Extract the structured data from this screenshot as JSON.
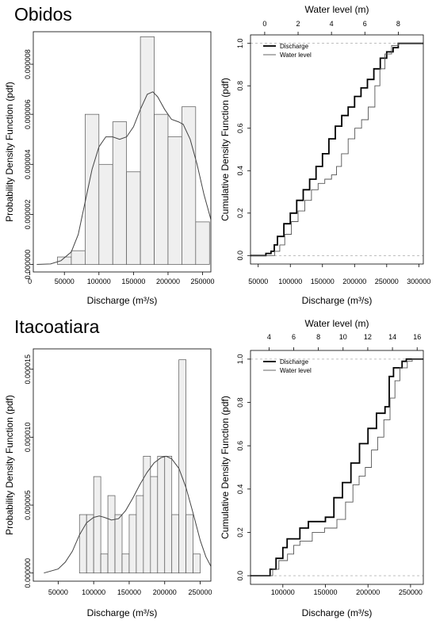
{
  "chart_data": [
    {
      "panel": "obidos-histogram",
      "type": "bar",
      "title": "Obidos",
      "xlabel": "Discharge (m³/s)",
      "ylabel": "Probability Density Function (pdf)",
      "xlim": [
        5000,
        262000
      ],
      "ylim": [
        -3e-07,
        9.3e-06
      ],
      "xticks": [
        0,
        50000,
        100000,
        150000,
        200000,
        250000
      ],
      "xtick_labels": [
        "0",
        "50000",
        "100000",
        "150000",
        "200000",
        "250000"
      ],
      "yticks": [
        0,
        2e-06,
        4e-06,
        6e-06,
        8e-06
      ],
      "ytick_labels": [
        "0.000000",
        "0.000002",
        "0.000004",
        "0.000006",
        "0.000008"
      ],
      "bins": [
        [
          40000,
          60000,
          3e-07
        ],
        [
          60000,
          80000,
          5.5e-07
        ],
        [
          80000,
          100000,
          6e-06
        ],
        [
          100000,
          120000,
          4e-06
        ],
        [
          120000,
          140000,
          5.7e-06
        ],
        [
          140000,
          160000,
          3.7e-06
        ],
        [
          160000,
          180000,
          9.1e-06
        ],
        [
          180000,
          200000,
          6e-06
        ],
        [
          200000,
          220000,
          5.1e-06
        ],
        [
          220000,
          240000,
          6.3e-06
        ],
        [
          240000,
          260000,
          1.7e-06
        ]
      ],
      "density_curve": [
        [
          10000,
          0
        ],
        [
          30000,
          2e-08
        ],
        [
          45000,
          1.5e-07
        ],
        [
          60000,
          5e-07
        ],
        [
          70000,
          1.2e-06
        ],
        [
          80000,
          2.5e-06
        ],
        [
          90000,
          3.8e-06
        ],
        [
          100000,
          4.7e-06
        ],
        [
          110000,
          5.1e-06
        ],
        [
          120000,
          5.1e-06
        ],
        [
          130000,
          5e-06
        ],
        [
          140000,
          5.1e-06
        ],
        [
          150000,
          5.5e-06
        ],
        [
          160000,
          6.2e-06
        ],
        [
          170000,
          6.8e-06
        ],
        [
          178000,
          6.9e-06
        ],
        [
          185000,
          6.7e-06
        ],
        [
          195000,
          6.2e-06
        ],
        [
          205000,
          5.8e-06
        ],
        [
          215000,
          5.7e-06
        ],
        [
          222000,
          5.6e-06
        ],
        [
          232000,
          5e-06
        ],
        [
          242000,
          4e-06
        ],
        [
          252000,
          2.8e-06
        ],
        [
          262000,
          1.8e-06
        ]
      ]
    },
    {
      "panel": "obidos-cdf",
      "type": "line",
      "xlabel": "Discharge (m³/s)",
      "ylabel": "Cumulative Density Function (pdf)",
      "top_axis_label": "Water level (m)",
      "xlim": [
        38000,
        307000
      ],
      "ylim": [
        -0.04,
        1.04
      ],
      "x2lim": [
        -0.85,
        9.5
      ],
      "xticks": [
        50000,
        100000,
        150000,
        200000,
        250000,
        300000
      ],
      "xtick_labels": [
        "50000",
        "100000",
        "150000",
        "200000",
        "250000",
        "300000"
      ],
      "x2ticks": [
        0,
        2,
        4,
        6,
        8
      ],
      "x2tick_labels": [
        "0",
        "2",
        "4",
        "6",
        "8"
      ],
      "yticks": [
        0,
        0.2,
        0.4,
        0.6,
        0.8,
        1.0
      ],
      "ytick_labels": [
        "0.0",
        "0.2",
        "0.4",
        "0.6",
        "0.8",
        "1.0"
      ],
      "legend_position": "top-left",
      "series": [
        {
          "name": "Discharge",
          "axis": "bottom",
          "color": "#000000",
          "points": [
            [
              38000,
              0
            ],
            [
              55000,
              0
            ],
            [
              62000,
              0.01
            ],
            [
              70000,
              0.02
            ],
            [
              75000,
              0.05
            ],
            [
              80000,
              0.09
            ],
            [
              90000,
              0.15
            ],
            [
              100000,
              0.2
            ],
            [
              110000,
              0.26
            ],
            [
              120000,
              0.31
            ],
            [
              130000,
              0.36
            ],
            [
              140000,
              0.42
            ],
            [
              150000,
              0.48
            ],
            [
              160000,
              0.55
            ],
            [
              170000,
              0.61
            ],
            [
              180000,
              0.66
            ],
            [
              190000,
              0.7
            ],
            [
              200000,
              0.75
            ],
            [
              210000,
              0.79
            ],
            [
              220000,
              0.83
            ],
            [
              230000,
              0.88
            ],
            [
              240000,
              0.93
            ],
            [
              250000,
              0.96
            ],
            [
              260000,
              0.98
            ],
            [
              268000,
              1.0
            ],
            [
              307000,
              1.0
            ]
          ]
        },
        {
          "name": "Water level",
          "axis": "top",
          "color": "#555555",
          "points": [
            [
              -0.85,
              0
            ],
            [
              0.35,
              0
            ],
            [
              0.6,
              0.02
            ],
            [
              0.9,
              0.05
            ],
            [
              1.2,
              0.1
            ],
            [
              1.6,
              0.16
            ],
            [
              2.0,
              0.21
            ],
            [
              2.4,
              0.26
            ],
            [
              2.8,
              0.31
            ],
            [
              3.2,
              0.34
            ],
            [
              3.6,
              0.36
            ],
            [
              4.0,
              0.38
            ],
            [
              4.3,
              0.42
            ],
            [
              4.6,
              0.48
            ],
            [
              5.0,
              0.55
            ],
            [
              5.4,
              0.6
            ],
            [
              5.8,
              0.64
            ],
            [
              6.2,
              0.7
            ],
            [
              6.6,
              0.8
            ],
            [
              6.9,
              0.88
            ],
            [
              7.2,
              0.95
            ],
            [
              7.6,
              0.99
            ],
            [
              8.0,
              1.0
            ],
            [
              9.5,
              1.0
            ]
          ]
        }
      ]
    },
    {
      "panel": "itacoatiara-histogram",
      "type": "bar",
      "title": "Itacoatiara",
      "xlabel": "Discharge (m³/s)",
      "ylabel": "Probability Density Function (pdf)",
      "xlim": [
        15000,
        265000
      ],
      "ylim": [
        -6e-07,
        1.65e-05
      ],
      "xticks": [
        50000,
        100000,
        150000,
        200000,
        250000
      ],
      "xtick_labels": [
        "50000",
        "100000",
        "150000",
        "200000",
        "250000"
      ],
      "yticks": [
        0,
        5e-06,
        1e-05,
        1.5e-05
      ],
      "ytick_labels": [
        "0.000000",
        "0.000005",
        "0.000010",
        "0.000015"
      ],
      "bins": [
        [
          80000,
          90000,
          4.3e-06
        ],
        [
          90000,
          100000,
          4.3e-06
        ],
        [
          100000,
          110000,
          7.1e-06
        ],
        [
          110000,
          120000,
          1.4e-06
        ],
        [
          120000,
          130000,
          5.7e-06
        ],
        [
          130000,
          140000,
          4.3e-06
        ],
        [
          140000,
          150000,
          1.4e-06
        ],
        [
          150000,
          160000,
          4.3e-06
        ],
        [
          160000,
          170000,
          5.7e-06
        ],
        [
          170000,
          180000,
          8.6e-06
        ],
        [
          180000,
          190000,
          7.1e-06
        ],
        [
          190000,
          200000,
          8.6e-06
        ],
        [
          200000,
          210000,
          8.6e-06
        ],
        [
          210000,
          220000,
          4.3e-06
        ],
        [
          220000,
          230000,
          1.57e-05
        ],
        [
          230000,
          240000,
          4.3e-06
        ],
        [
          240000,
          250000,
          1.4e-06
        ]
      ],
      "density_curve": [
        [
          30000,
          0
        ],
        [
          50000,
          3e-07
        ],
        [
          60000,
          8e-07
        ],
        [
          70000,
          1.6e-06
        ],
        [
          80000,
          2.8e-06
        ],
        [
          90000,
          3.7e-06
        ],
        [
          100000,
          4.1e-06
        ],
        [
          108000,
          4.2e-06
        ],
        [
          115000,
          4.1e-06
        ],
        [
          125000,
          3.9e-06
        ],
        [
          135000,
          4e-06
        ],
        [
          145000,
          4.6e-06
        ],
        [
          155000,
          5.5e-06
        ],
        [
          165000,
          6.5e-06
        ],
        [
          175000,
          7.4e-06
        ],
        [
          185000,
          8.1e-06
        ],
        [
          195000,
          8.5e-06
        ],
        [
          202000,
          8.6e-06
        ],
        [
          210000,
          8.4e-06
        ],
        [
          220000,
          7.7e-06
        ],
        [
          230000,
          6.3e-06
        ],
        [
          240000,
          4.4e-06
        ],
        [
          250000,
          2.4e-06
        ],
        [
          258000,
          1.2e-06
        ],
        [
          265000,
          5e-07
        ]
      ]
    },
    {
      "panel": "itacoatiara-cdf",
      "type": "line",
      "xlabel": "Discharge (m³/s)",
      "ylabel": "Cumulative Density Function (pdf)",
      "top_axis_label": "Water level (m)",
      "xlim": [
        62000,
        265000
      ],
      "ylim": [
        -0.04,
        1.04
      ],
      "x2lim": [
        2.5,
        16.5
      ],
      "xticks": [
        100000,
        150000,
        200000,
        250000
      ],
      "xtick_labels": [
        "100000",
        "150000",
        "200000",
        "250000"
      ],
      "x2ticks": [
        4,
        6,
        8,
        10,
        12,
        14,
        16
      ],
      "x2tick_labels": [
        "4",
        "6",
        "8",
        "10",
        "12",
        "14",
        "16"
      ],
      "yticks": [
        0,
        0.2,
        0.4,
        0.6,
        0.8,
        1.0
      ],
      "ytick_labels": [
        "0.0",
        "0.2",
        "0.4",
        "0.6",
        "0.8",
        "1.0"
      ],
      "legend_position": "top-left",
      "series": [
        {
          "name": "Discharge",
          "axis": "bottom",
          "color": "#000000",
          "points": [
            [
              62000,
              0
            ],
            [
              82000,
              0
            ],
            [
              85000,
              0.03
            ],
            [
              92000,
              0.08
            ],
            [
              100000,
              0.13
            ],
            [
              105000,
              0.17
            ],
            [
              115000,
              0.17
            ],
            [
              120000,
              0.22
            ],
            [
              130000,
              0.25
            ],
            [
              140000,
              0.25
            ],
            [
              150000,
              0.27
            ],
            [
              160000,
              0.36
            ],
            [
              170000,
              0.43
            ],
            [
              180000,
              0.52
            ],
            [
              190000,
              0.61
            ],
            [
              200000,
              0.68
            ],
            [
              210000,
              0.75
            ],
            [
              220000,
              0.78
            ],
            [
              225000,
              0.92
            ],
            [
              230000,
              0.96
            ],
            [
              240000,
              0.99
            ],
            [
              245000,
              1.0
            ],
            [
              265000,
              1.0
            ]
          ]
        },
        {
          "name": "Water level",
          "axis": "top",
          "color": "#555555",
          "points": [
            [
              2.5,
              0
            ],
            [
              4.0,
              0
            ],
            [
              4.3,
              0.03
            ],
            [
              4.8,
              0.07
            ],
            [
              5.5,
              0.1
            ],
            [
              6.0,
              0.14
            ],
            [
              6.5,
              0.16
            ],
            [
              7.5,
              0.2
            ],
            [
              8.5,
              0.22
            ],
            [
              9.5,
              0.26
            ],
            [
              10.2,
              0.34
            ],
            [
              10.8,
              0.42
            ],
            [
              11.3,
              0.46
            ],
            [
              11.8,
              0.5
            ],
            [
              12.3,
              0.58
            ],
            [
              12.8,
              0.64
            ],
            [
              13.3,
              0.72
            ],
            [
              13.8,
              0.82
            ],
            [
              14.2,
              0.9
            ],
            [
              14.6,
              0.96
            ],
            [
              15.2,
              0.99
            ],
            [
              15.6,
              1.0
            ],
            [
              16.5,
              1.0
            ]
          ]
        }
      ]
    }
  ]
}
